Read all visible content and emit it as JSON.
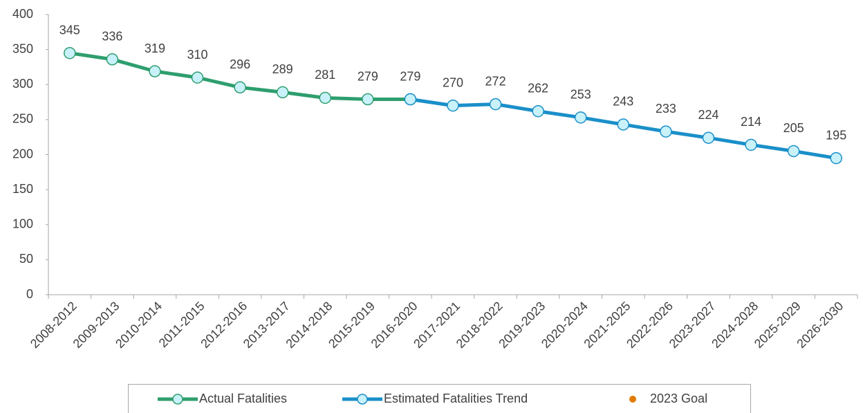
{
  "chart_data": {
    "type": "line",
    "categories": [
      "2008-2012",
      "2009-2013",
      "2010-2014",
      "2011-2015",
      "2012-2016",
      "2013-2017",
      "2014-2018",
      "2015-2019",
      "2016-2020",
      "2017-2021",
      "2018-2022",
      "2019-2023",
      "2020-2024",
      "2021-2025",
      "2022-2026",
      "2023-2027",
      "2024-2028",
      "2025-2029",
      "2026-2030"
    ],
    "series": [
      {
        "name": "Actual Fatalities",
        "color": "#2e9e6e",
        "values": [
          345,
          336,
          319,
          310,
          296,
          289,
          281,
          279,
          279,
          null,
          null,
          null,
          null,
          null,
          null,
          null,
          null,
          null,
          null
        ]
      },
      {
        "name": "Estimated Fatalities Trend",
        "color": "#1a8fc9",
        "values": [
          null,
          null,
          null,
          null,
          null,
          null,
          null,
          null,
          279,
          270,
          272,
          262,
          253,
          243,
          233,
          224,
          214,
          205,
          195
        ]
      },
      {
        "name": "2023 Goal",
        "color": "#e07b00",
        "values": [
          null,
          null,
          null,
          null,
          null,
          null,
          null,
          null,
          null,
          null,
          null,
          null,
          null,
          null,
          null,
          null,
          null,
          null,
          null
        ]
      }
    ],
    "ylim": [
      0,
      400
    ],
    "yticks": [
      0,
      50,
      100,
      150,
      200,
      250,
      300,
      350,
      400
    ],
    "grid": false
  }
}
